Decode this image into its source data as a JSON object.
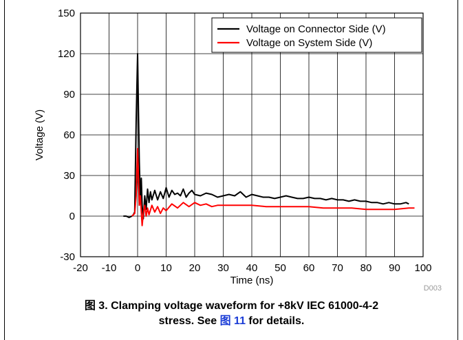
{
  "chart_data": {
    "type": "line",
    "xlabel": "Time (ns)",
    "ylabel": "Voltage (V)",
    "xlim": [
      -20,
      100
    ],
    "ylim": [
      -30,
      150
    ],
    "xticks": [
      -20,
      -10,
      0,
      10,
      20,
      30,
      40,
      50,
      60,
      70,
      80,
      90,
      100
    ],
    "yticks": [
      -30,
      0,
      30,
      60,
      90,
      120,
      150
    ],
    "grid": true,
    "legend_position": "top-right",
    "series": [
      {
        "name": "Voltage on Connector Side (V)",
        "color": "#000000",
        "x": [
          -5,
          -4,
          -3,
          -2,
          -1.5,
          -1,
          -0.5,
          0,
          0.3,
          0.6,
          1,
          1.3,
          1.6,
          2,
          2.5,
          3,
          3.5,
          4,
          4.5,
          5,
          6,
          7,
          8,
          9,
          10,
          11,
          12,
          13,
          14,
          15,
          16,
          17,
          18,
          19,
          20,
          22,
          24,
          26,
          28,
          30,
          32,
          34,
          36,
          38,
          40,
          42,
          44,
          46,
          48,
          50,
          52,
          54,
          56,
          58,
          60,
          62,
          64,
          66,
          68,
          70,
          72,
          74,
          76,
          78,
          80,
          82,
          84,
          86,
          88,
          90,
          92,
          94,
          95
        ],
        "y": [
          0,
          0,
          -1,
          0,
          1,
          3,
          70,
          120,
          80,
          40,
          10,
          28,
          8,
          -2,
          15,
          5,
          20,
          10,
          18,
          12,
          19,
          12,
          18,
          13,
          21,
          14,
          19,
          16,
          17,
          15,
          20,
          14,
          17,
          19,
          16,
          15,
          17,
          16,
          14,
          15,
          16,
          15,
          18,
          14,
          16,
          15,
          14,
          14,
          13,
          14,
          15,
          14,
          13,
          13,
          14,
          13,
          13,
          12,
          13,
          12,
          12,
          11,
          12,
          11,
          11,
          10,
          10,
          9,
          10,
          9,
          9,
          10,
          9
        ]
      },
      {
        "name": "Voltage on System Side (V)",
        "color": "#ff0000",
        "x": [
          -2,
          -1.5,
          -1,
          -0.5,
          0,
          0.3,
          0.6,
          1,
          1.3,
          1.6,
          2,
          2.5,
          3,
          3.5,
          4,
          5,
          6,
          7,
          8,
          9,
          10,
          12,
          14,
          16,
          18,
          20,
          22,
          24,
          26,
          28,
          30,
          35,
          40,
          45,
          50,
          55,
          60,
          65,
          70,
          75,
          80,
          85,
          90,
          95,
          97
        ],
        "y": [
          0,
          1,
          2,
          15,
          50,
          30,
          8,
          15,
          3,
          -7,
          2,
          8,
          0,
          6,
          1,
          8,
          3,
          7,
          2,
          6,
          4,
          9,
          6,
          10,
          7,
          10,
          8,
          9,
          7,
          8,
          8,
          8,
          8,
          7,
          7,
          7,
          7,
          6,
          6,
          6,
          5,
          5,
          5,
          6,
          6
        ]
      }
    ],
    "annotation": "D003"
  },
  "caption": {
    "prefix": "图 3. Clamping voltage waveform for +8kV IEC 61000-4-2",
    "line2_start": "stress. See ",
    "link": "图 11",
    "line2_end": " for details."
  }
}
